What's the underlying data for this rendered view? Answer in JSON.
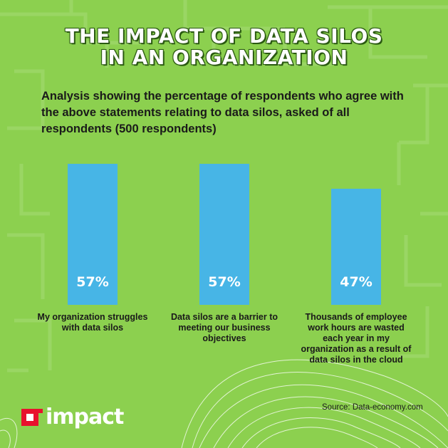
{
  "title_lines": [
    "THE IMPACT OF DATA SILOS",
    "IN AN ORGANIZATION"
  ],
  "subtitle": "Analysis showing the percentage of respondents who agree with the above statements relating to data silos, asked of all respondents (500 respondents)",
  "chart_data": {
    "type": "bar",
    "categories": [
      "My organization struggles with data silos",
      "Data silos are a barrier to meeting our business objectives",
      "Thousands of employee work hours are wasted each year in my organization as a result of data silos in the cloud"
    ],
    "values": [
      57,
      57,
      47
    ],
    "value_labels": [
      "57%",
      "57%",
      "47%"
    ],
    "bar_color": "#47b5e6",
    "background_color": "#8cd04f",
    "grid": false
  },
  "source": "Source: Data-economy.com",
  "logo": {
    "text": "impact",
    "mark_color": "#e8112d"
  }
}
